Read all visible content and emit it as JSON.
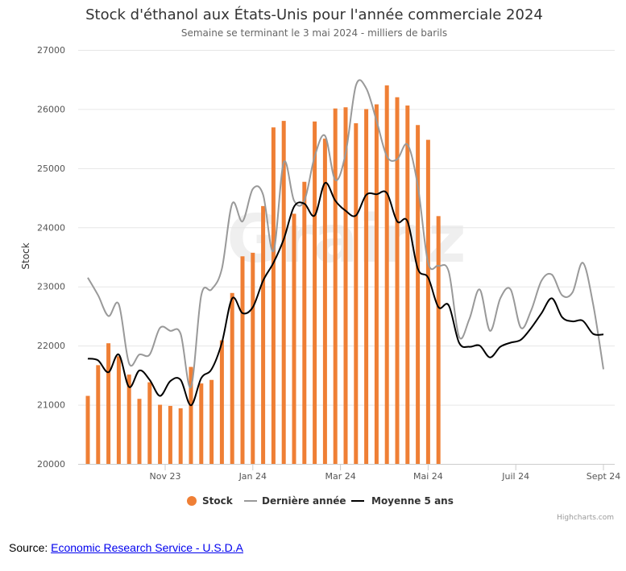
{
  "chart_data": {
    "type": "bar+line",
    "title": "Stock d'éthanol aux États-Unis pour l'année commerciale 2024",
    "subtitle": "Semaine se terminant le 3 mai 2024 - milliers de barils",
    "ylabel": "Stock",
    "ylim": [
      20000,
      27000
    ],
    "yticks": [
      "20000",
      "21000",
      "22000",
      "23000",
      "24000",
      "25000",
      "26000",
      "27000"
    ],
    "xticks": [
      "Nov 23",
      "Jan 24",
      "Mar 24",
      "Mai 24",
      "Juil 24",
      "Sept 24"
    ],
    "watermark": "Grainz",
    "credits": "Highcharts.com",
    "colors": {
      "stock": "#ef7f35",
      "last_year": "#999999",
      "avg5": "#000000"
    },
    "series": [
      {
        "name": "Stock",
        "type": "column",
        "values": [
          21150,
          21670,
          22040,
          21820,
          21510,
          21100,
          21380,
          21000,
          20980,
          20940,
          21640,
          21360,
          21420,
          22090,
          22890,
          23510,
          23570,
          24360,
          25690,
          25800,
          24230,
          24770,
          25790,
          25500,
          26010,
          26030,
          25760,
          26000,
          26080,
          26400,
          26200,
          26060,
          25730,
          25480,
          24190
        ]
      },
      {
        "name": "Dernière année",
        "type": "line",
        "values": [
          23150,
          22850,
          22500,
          22700,
          21700,
          21850,
          21850,
          22300,
          22250,
          22200,
          21300,
          22850,
          22950,
          23300,
          24400,
          24100,
          24650,
          24550,
          23600,
          25100,
          24450,
          24450,
          25200,
          25550,
          24800,
          25250,
          26400,
          26350,
          25800,
          25200,
          25150,
          25400,
          24700,
          23400,
          23350,
          23250,
          22150,
          22450,
          22950,
          22250,
          22800,
          22950,
          22300,
          22600,
          23100,
          23200,
          22850,
          22900,
          23400,
          22700,
          21600
        ]
      },
      {
        "name": "Moyenne 5 ans",
        "type": "line",
        "values": [
          21780,
          21750,
          21550,
          21850,
          21300,
          21580,
          21420,
          21150,
          21400,
          21420,
          20990,
          21450,
          21600,
          22050,
          22800,
          22550,
          22650,
          23100,
          23400,
          23800,
          24350,
          24400,
          24200,
          24750,
          24450,
          24280,
          24200,
          24550,
          24560,
          24580,
          24100,
          24100,
          23300,
          23150,
          22650,
          22680,
          22050,
          21980,
          22000,
          21800,
          21980,
          22050,
          22100,
          22300,
          22550,
          22800,
          22480,
          22410,
          22420,
          22200,
          22190
        ]
      }
    ]
  },
  "source": {
    "label": "Source: ",
    "link_text": "Economic Research Service - U.S.D.A"
  }
}
